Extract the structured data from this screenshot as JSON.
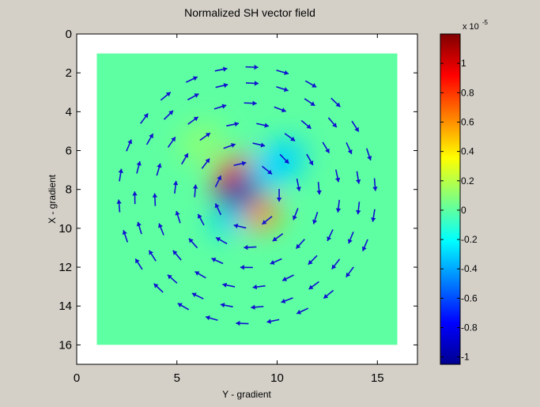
{
  "chart_data": {
    "type": "heatmap",
    "title": "Normalized SH vector field",
    "xlabel": "Y - gradient",
    "ylabel": "X - gradient",
    "xlim": [
      0,
      17
    ],
    "ylim": [
      0,
      17
    ],
    "y_reversed": true,
    "xticks": [
      "0",
      "5",
      "10",
      "15"
    ],
    "yticks": [
      "0",
      "2",
      "4",
      "6",
      "8",
      "10",
      "12",
      "14",
      "16"
    ],
    "image_extent": {
      "x": [
        1,
        16
      ],
      "y": [
        1,
        16
      ]
    },
    "background_value": 0,
    "field_blobs": [
      {
        "x": 7.8,
        "y": 7.2,
        "value": 0.75
      },
      {
        "x": 9.2,
        "y": 9.3,
        "value": 0.6
      },
      {
        "x": 8.2,
        "y": 8.1,
        "value": -1.0
      },
      {
        "x": 7.6,
        "y": 9.6,
        "value": -0.3
      },
      {
        "x": 10.0,
        "y": 6.7,
        "value": -0.3
      },
      {
        "x": 6.2,
        "y": 5.6,
        "value": 0.1
      }
    ],
    "vector_field": {
      "type": "quiver",
      "color": "#1010d0",
      "center": {
        "x": 8.5,
        "y": 8.3
      },
      "direction": "clockwise",
      "ring_radii": [
        1.6,
        2.6,
        3.6,
        4.6,
        5.6,
        6.4
      ],
      "ring_arrow_counts": [
        7,
        11,
        15,
        19,
        23,
        26
      ]
    },
    "colorbar": {
      "range": [
        -1.05,
        1.2
      ],
      "ticks": [
        "-1",
        "-0.8",
        "-0.6",
        "-0.4",
        "-0.2",
        "0",
        "0.2",
        "0.4",
        "0.6",
        "0.8",
        "1"
      ],
      "exponent_label": "x 10",
      "exponent_power": "-5",
      "colormap": "jet"
    }
  }
}
